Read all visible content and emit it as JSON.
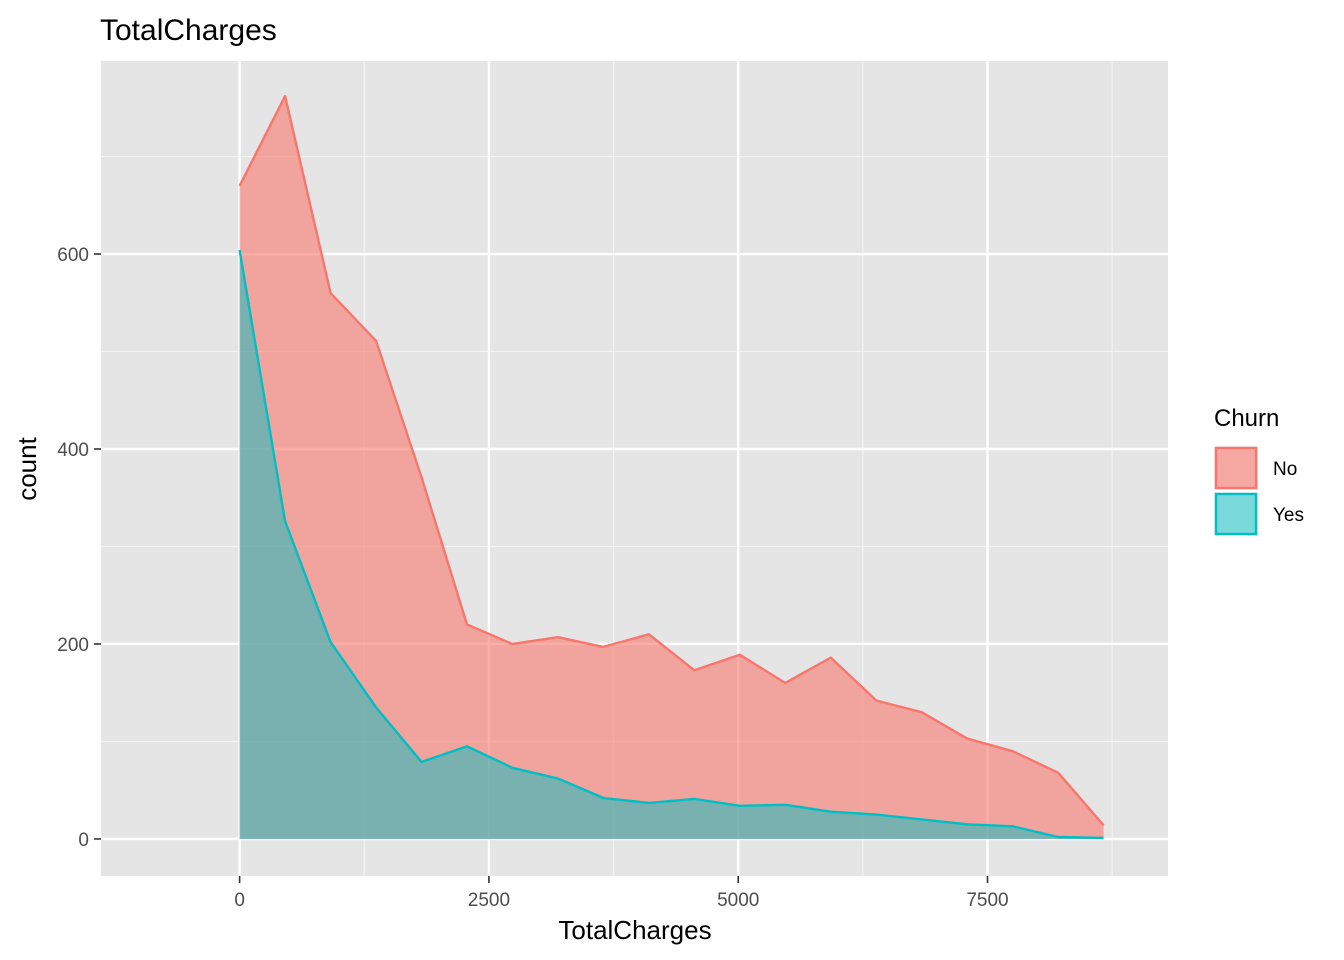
{
  "chart_data": {
    "type": "area",
    "title": "TotalCharges",
    "xlabel": "TotalCharges",
    "ylabel": "count",
    "xlim": [
      -1390,
      9310
    ],
    "ylim": [
      -38,
      798
    ],
    "x_ticks": [
      0,
      2500,
      5000,
      7500
    ],
    "x_tick_labels": [
      "0",
      "2500",
      "5000",
      "7500"
    ],
    "x_minor_ticks": [
      1250,
      3750,
      6250,
      8750
    ],
    "y_ticks": [
      0,
      200,
      400,
      600
    ],
    "y_tick_labels": [
      "0",
      "200",
      "400",
      "600"
    ],
    "y_minor_ticks": [
      100,
      300,
      500,
      700
    ],
    "grid": true,
    "legend": {
      "title": "Churn",
      "position": "right",
      "entries": [
        "No",
        "Yes"
      ]
    },
    "x": [
      0,
      456,
      912,
      1368,
      1824,
      2280,
      2736,
      3192,
      3648,
      4104,
      4560,
      5016,
      5472,
      5928,
      6384,
      6840,
      7296,
      7752,
      8208,
      8664
    ],
    "series": [
      {
        "name": "No",
        "line_color": "#F8766D",
        "fill_color": "#F8766D",
        "fill_opacity": 0.6,
        "values": [
          670,
          762,
          560,
          511,
          371,
          220,
          200,
          207,
          197,
          210,
          173,
          189,
          160,
          186,
          142,
          130,
          103,
          90,
          68,
          14
        ]
      },
      {
        "name": "Yes",
        "line_color": "#00BFC4",
        "fill_color": "#00BFC4",
        "fill_opacity": 0.5,
        "values": [
          604,
          326,
          202,
          135,
          79,
          95,
          73,
          62,
          42,
          37,
          41,
          34,
          35,
          28,
          25,
          20,
          15,
          13,
          2,
          1
        ]
      }
    ]
  }
}
